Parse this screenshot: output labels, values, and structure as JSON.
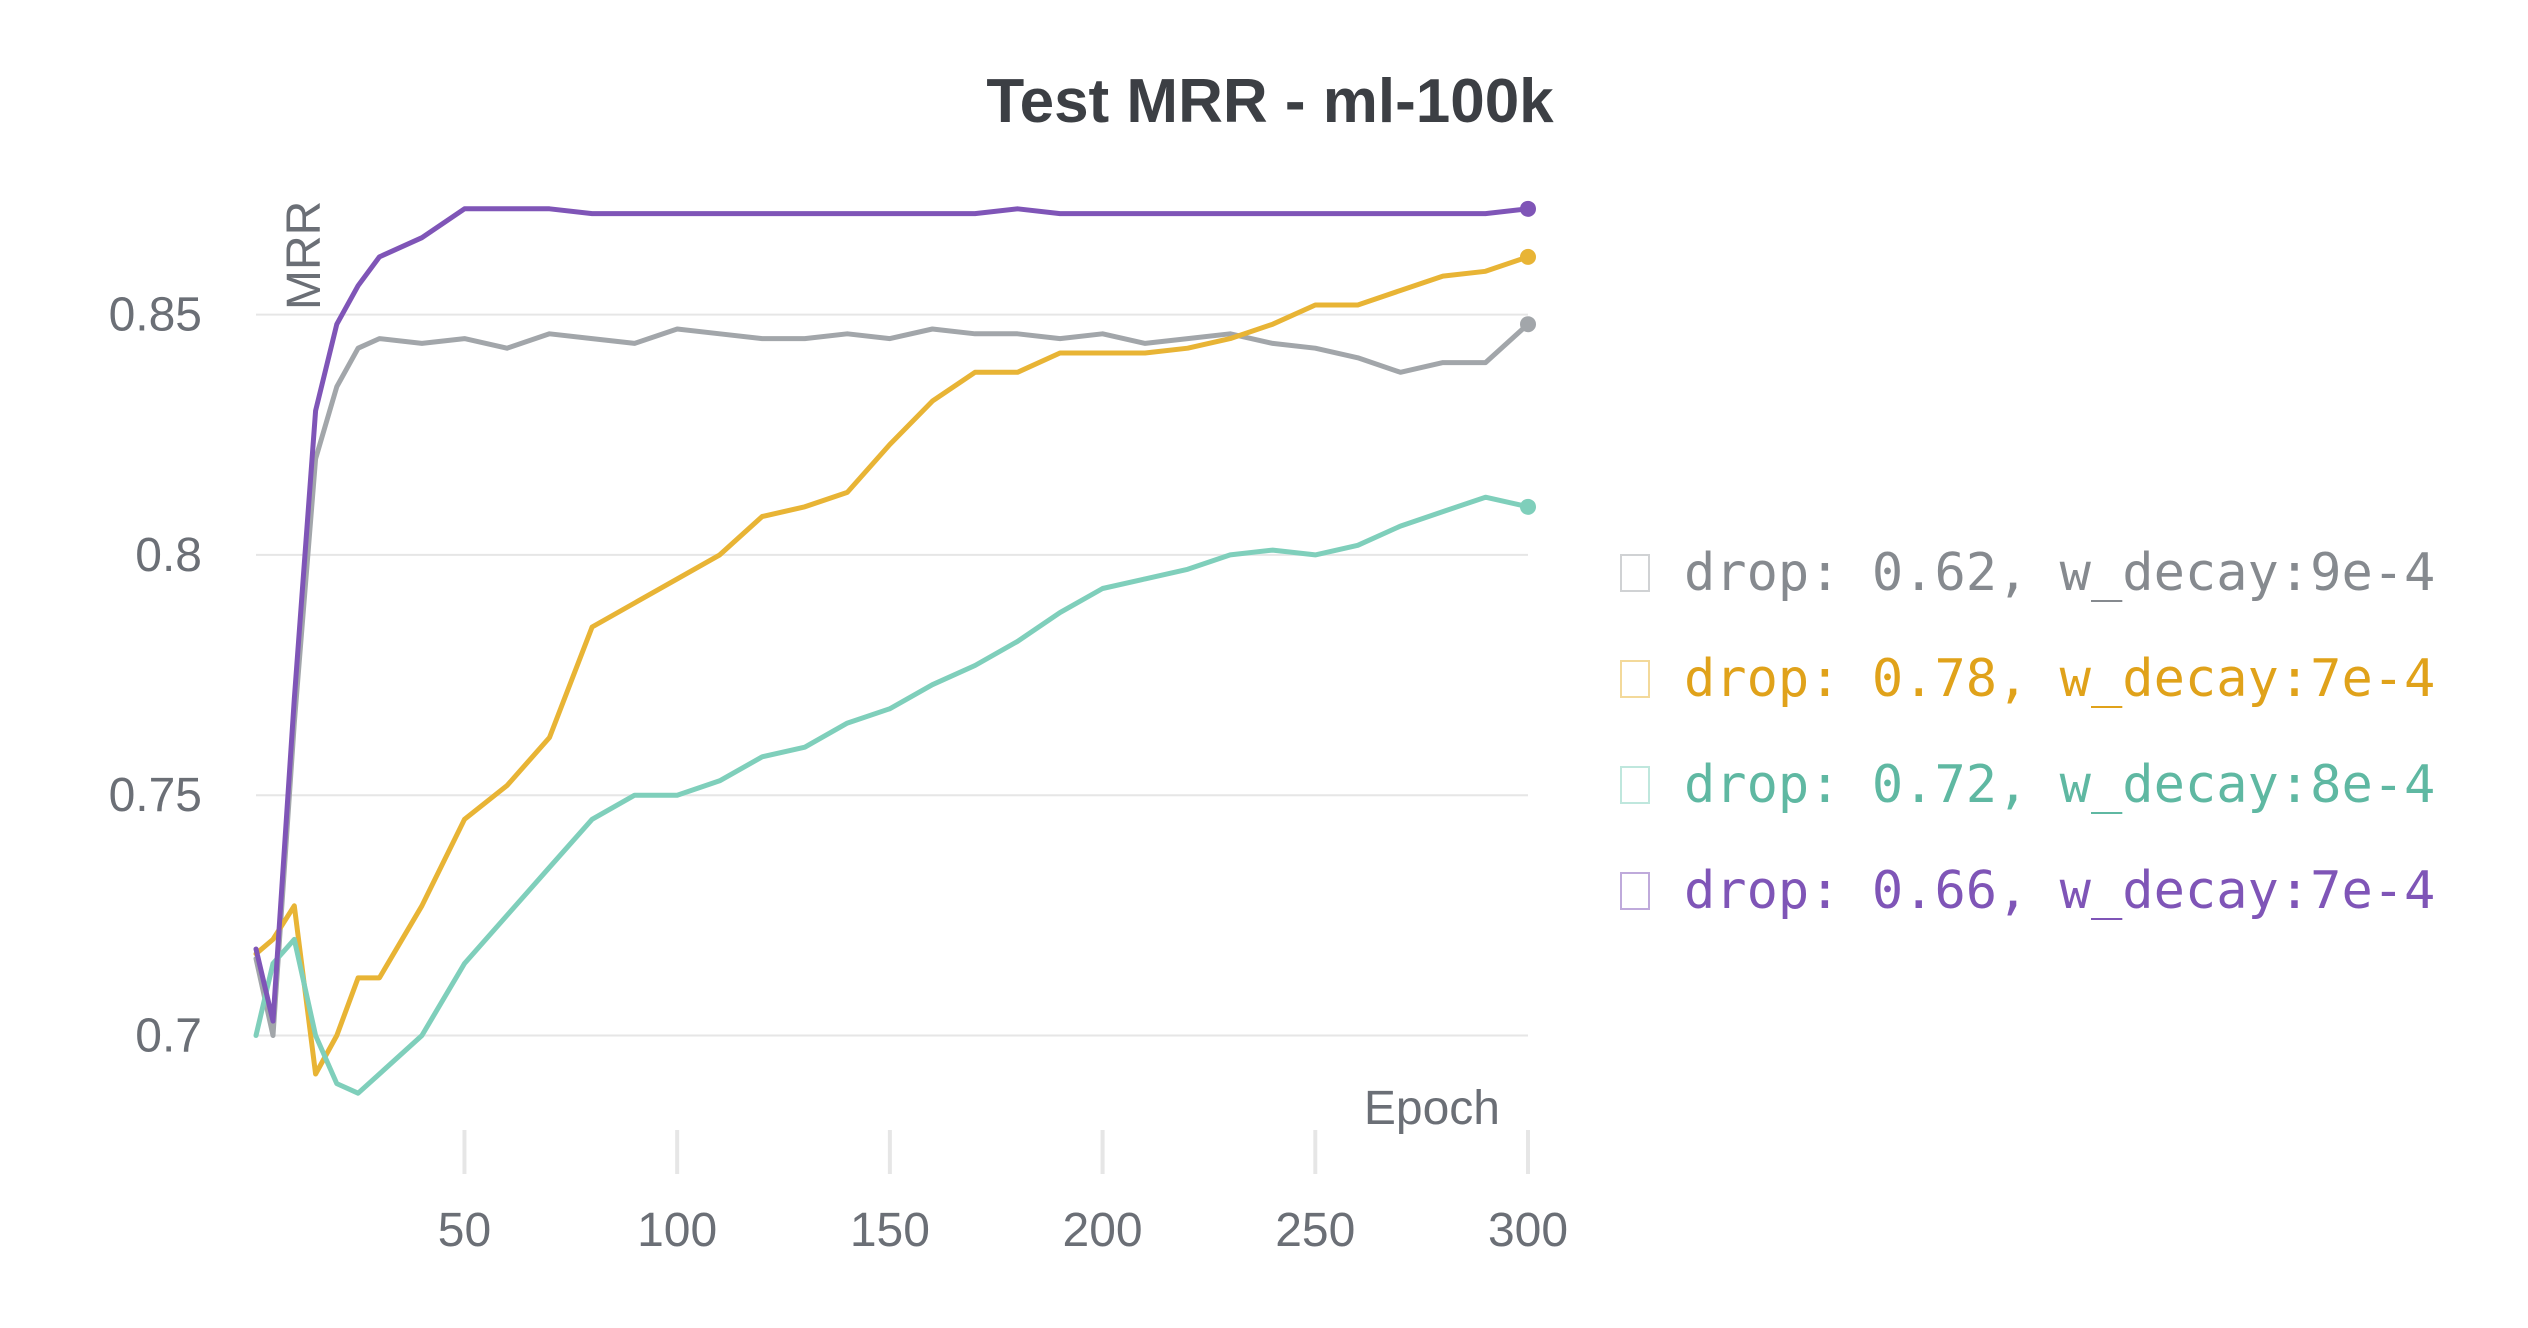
{
  "chart_data": {
    "type": "line",
    "title": "Test MRR - ml-100k",
    "xlabel": "Epoch",
    "ylabel": "MRR",
    "xlim": [
      1,
      300
    ],
    "ylim": [
      0.692,
      0.878
    ],
    "x_ticks": [
      50,
      100,
      150,
      200,
      250,
      300
    ],
    "y_ticks": [
      0.7,
      0.75,
      0.8,
      0.85
    ],
    "y_tick_labels": [
      "0.7",
      "0.75",
      "0.8",
      "0.85"
    ],
    "grid": "horizontal",
    "legend_position": "right",
    "x": [
      1,
      5,
      10,
      15,
      20,
      25,
      30,
      40,
      50,
      60,
      70,
      80,
      90,
      100,
      110,
      120,
      130,
      140,
      150,
      160,
      170,
      180,
      190,
      200,
      210,
      220,
      230,
      240,
      250,
      260,
      270,
      280,
      290,
      300
    ],
    "series": [
      {
        "name": "drop: 0.62, w_decay:9e-4",
        "color": "#a2a6aa",
        "values": [
          0.716,
          0.7,
          0.765,
          0.82,
          0.835,
          0.843,
          0.845,
          0.844,
          0.845,
          0.843,
          0.846,
          0.845,
          0.844,
          0.847,
          0.846,
          0.845,
          0.845,
          0.846,
          0.845,
          0.847,
          0.846,
          0.846,
          0.845,
          0.846,
          0.844,
          0.845,
          0.846,
          0.844,
          0.843,
          0.841,
          0.838,
          0.84,
          0.84,
          0.848
        ]
      },
      {
        "name": "drop: 0.78, w_decay:7e-4",
        "color": "#e8b435",
        "values": [
          0.717,
          0.72,
          0.727,
          0.692,
          0.7,
          0.712,
          0.712,
          0.727,
          0.745,
          0.752,
          0.762,
          0.785,
          0.79,
          0.795,
          0.8,
          0.808,
          0.81,
          0.813,
          0.823,
          0.832,
          0.838,
          0.838,
          0.842,
          0.842,
          0.842,
          0.843,
          0.845,
          0.848,
          0.852,
          0.852,
          0.855,
          0.858,
          0.859,
          0.862
        ]
      },
      {
        "name": "drop: 0.72, w_decay:8e-4",
        "color": "#7fcfbb",
        "values": [
          0.7,
          0.715,
          0.72,
          0.7,
          0.69,
          0.688,
          0.692,
          0.7,
          0.715,
          0.725,
          0.735,
          0.745,
          0.75,
          0.75,
          0.753,
          0.758,
          0.76,
          0.765,
          0.768,
          0.773,
          0.777,
          0.782,
          0.788,
          0.793,
          0.795,
          0.797,
          0.8,
          0.801,
          0.8,
          0.802,
          0.806,
          0.809,
          0.812,
          0.81
        ]
      },
      {
        "name": "drop: 0.66, w_decay:7e-4",
        "color": "#7f55b7",
        "values": [
          0.718,
          0.703,
          0.77,
          0.83,
          0.848,
          0.856,
          0.862,
          0.866,
          0.872,
          0.872,
          0.872,
          0.871,
          0.871,
          0.871,
          0.871,
          0.871,
          0.871,
          0.871,
          0.871,
          0.871,
          0.871,
          0.872,
          0.871,
          0.871,
          0.871,
          0.871,
          0.871,
          0.871,
          0.871,
          0.871,
          0.871,
          0.871,
          0.871,
          0.872
        ]
      }
    ]
  }
}
